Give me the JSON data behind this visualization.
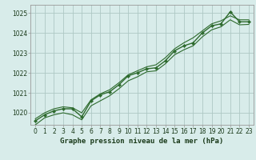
{
  "title": "Graphe pression niveau de la mer (hPa)",
  "bg_color": "#d8ecea",
  "grid_color": "#aec8c4",
  "line_color": "#2d6a2d",
  "x_hours": [
    0,
    1,
    2,
    3,
    4,
    5,
    6,
    7,
    8,
    9,
    10,
    11,
    12,
    13,
    14,
    15,
    16,
    17,
    18,
    19,
    20,
    21,
    22,
    23
  ],
  "pressure_main": [
    1019.6,
    1019.9,
    1020.1,
    1020.2,
    1020.2,
    1019.8,
    1020.6,
    1020.9,
    1021.05,
    1021.4,
    1021.85,
    1022.0,
    1022.2,
    1022.25,
    1022.6,
    1023.1,
    1023.35,
    1023.5,
    1024.0,
    1024.35,
    1024.45,
    1025.05,
    1024.55,
    1024.55
  ],
  "pressure_upper": [
    1019.7,
    1020.0,
    1020.2,
    1020.3,
    1020.25,
    1020.0,
    1020.65,
    1020.95,
    1021.15,
    1021.5,
    1021.9,
    1022.1,
    1022.3,
    1022.4,
    1022.75,
    1023.2,
    1023.5,
    1023.75,
    1024.1,
    1024.45,
    1024.6,
    1024.85,
    1024.65,
    1024.65
  ],
  "pressure_lower": [
    1019.4,
    1019.75,
    1019.9,
    1020.0,
    1019.9,
    1019.65,
    1020.35,
    1020.6,
    1020.85,
    1021.2,
    1021.6,
    1021.8,
    1022.05,
    1022.1,
    1022.45,
    1022.9,
    1023.15,
    1023.35,
    1023.8,
    1024.15,
    1024.3,
    1024.65,
    1024.4,
    1024.42
  ],
  "ylim": [
    1019.4,
    1025.4
  ],
  "yticks": [
    1020,
    1021,
    1022,
    1023,
    1024,
    1025
  ],
  "xlim_min": -0.5,
  "xlim_max": 23.5,
  "xticks": [
    0,
    1,
    2,
    3,
    4,
    5,
    6,
    7,
    8,
    9,
    10,
    11,
    12,
    13,
    14,
    15,
    16,
    17,
    18,
    19,
    20,
    21,
    22,
    23
  ],
  "ylabel_fontsize": 5.5,
  "xlabel_fontsize": 6.5,
  "tick_labelsize": 5.5
}
